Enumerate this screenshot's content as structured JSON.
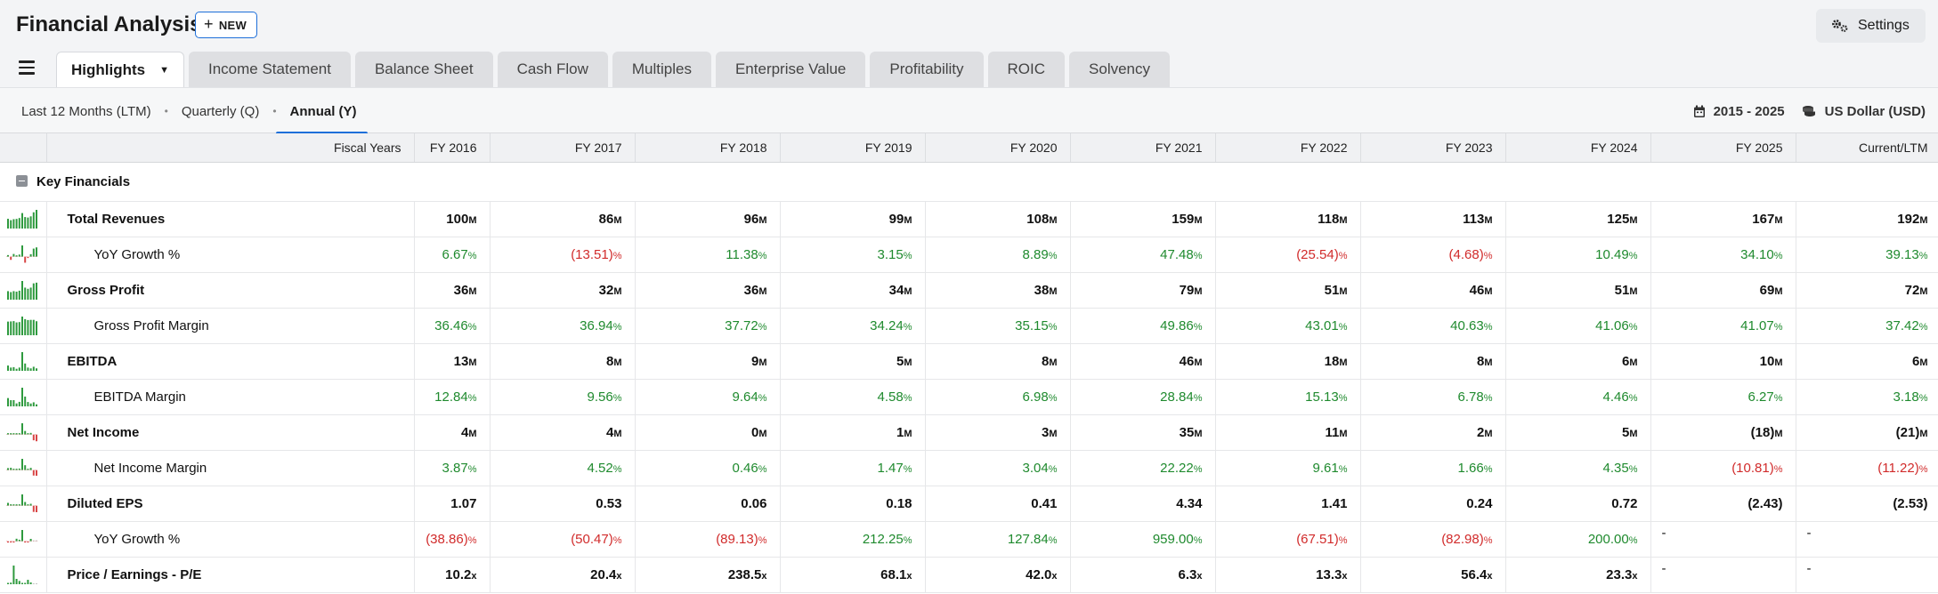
{
  "app": {
    "title": "Financial Analysis",
    "new_label": "NEW",
    "settings_label": "Settings"
  },
  "tabs": [
    {
      "label": "Highlights",
      "active": true
    },
    {
      "label": "Income Statement"
    },
    {
      "label": "Balance Sheet"
    },
    {
      "label": "Cash Flow"
    },
    {
      "label": "Multiples"
    },
    {
      "label": "Enterprise Value"
    },
    {
      "label": "Profitability"
    },
    {
      "label": "ROIC"
    },
    {
      "label": "Solvency"
    }
  ],
  "periods": [
    {
      "label": "Last 12 Months (LTM)"
    },
    {
      "label": "Quarterly (Q)"
    },
    {
      "label": "Annual (Y)",
      "active": true
    }
  ],
  "controls": {
    "date_range": "2015 - 2025",
    "currency": "US Dollar (USD)"
  },
  "table": {
    "header_label": "Fiscal Years",
    "columns": [
      "FY 2016",
      "FY 2017",
      "FY 2018",
      "FY 2019",
      "FY 2020",
      "FY 2021",
      "FY 2022",
      "FY 2023",
      "FY 2024",
      "FY 2025",
      "Current/LTM"
    ],
    "section_title": "Key Financials",
    "rows": [
      {
        "name": "total-revenues",
        "label": "Total Revenues",
        "sub": false,
        "spark": "bar-green",
        "values": [
          [
            "100",
            "M",
            ""
          ],
          [
            "86",
            "M",
            ""
          ],
          [
            "96",
            "M",
            ""
          ],
          [
            "99",
            "M",
            ""
          ],
          [
            "108",
            "M",
            ""
          ],
          [
            "159",
            "M",
            ""
          ],
          [
            "118",
            "M",
            ""
          ],
          [
            "113",
            "M",
            ""
          ],
          [
            "125",
            "M",
            ""
          ],
          [
            "167",
            "M",
            ""
          ],
          [
            "192",
            "M",
            ""
          ]
        ]
      },
      {
        "name": "revenue-yoy-growth",
        "label": "YoY Growth %",
        "sub": true,
        "spark": "bar-mixed",
        "values": [
          [
            "6.67",
            "%",
            "pos"
          ],
          [
            "(13.51)",
            "%",
            "neg"
          ],
          [
            "11.38",
            "%",
            "pos"
          ],
          [
            "3.15",
            "%",
            "pos"
          ],
          [
            "8.89",
            "%",
            "pos"
          ],
          [
            "47.48",
            "%",
            "pos"
          ],
          [
            "(25.54)",
            "%",
            "neg"
          ],
          [
            "(4.68)",
            "%",
            "neg"
          ],
          [
            "10.49",
            "%",
            "pos"
          ],
          [
            "34.10",
            "%",
            "pos"
          ],
          [
            "39.13",
            "%",
            "pos"
          ]
        ]
      },
      {
        "name": "gross-profit",
        "label": "Gross Profit",
        "sub": false,
        "spark": "bar-green",
        "values": [
          [
            "36",
            "M",
            ""
          ],
          [
            "32",
            "M",
            ""
          ],
          [
            "36",
            "M",
            ""
          ],
          [
            "34",
            "M",
            ""
          ],
          [
            "38",
            "M",
            ""
          ],
          [
            "79",
            "M",
            ""
          ],
          [
            "51",
            "M",
            ""
          ],
          [
            "46",
            "M",
            ""
          ],
          [
            "51",
            "M",
            ""
          ],
          [
            "69",
            "M",
            ""
          ],
          [
            "72",
            "M",
            ""
          ]
        ]
      },
      {
        "name": "gross-profit-margin",
        "label": "Gross Profit Margin",
        "sub": true,
        "spark": "bar-green",
        "values": [
          [
            "36.46",
            "%",
            "pos"
          ],
          [
            "36.94",
            "%",
            "pos"
          ],
          [
            "37.72",
            "%",
            "pos"
          ],
          [
            "34.24",
            "%",
            "pos"
          ],
          [
            "35.15",
            "%",
            "pos"
          ],
          [
            "49.86",
            "%",
            "pos"
          ],
          [
            "43.01",
            "%",
            "pos"
          ],
          [
            "40.63",
            "%",
            "pos"
          ],
          [
            "41.06",
            "%",
            "pos"
          ],
          [
            "41.07",
            "%",
            "pos"
          ],
          [
            "37.42",
            "%",
            "pos"
          ]
        ]
      },
      {
        "name": "ebitda",
        "label": "EBITDA",
        "sub": false,
        "spark": "bar-green",
        "values": [
          [
            "13",
            "M",
            ""
          ],
          [
            "8",
            "M",
            ""
          ],
          [
            "9",
            "M",
            ""
          ],
          [
            "5",
            "M",
            ""
          ],
          [
            "8",
            "M",
            ""
          ],
          [
            "46",
            "M",
            ""
          ],
          [
            "18",
            "M",
            ""
          ],
          [
            "8",
            "M",
            ""
          ],
          [
            "6",
            "M",
            ""
          ],
          [
            "10",
            "M",
            ""
          ],
          [
            "6",
            "M",
            ""
          ]
        ]
      },
      {
        "name": "ebitda-margin",
        "label": "EBITDA Margin",
        "sub": true,
        "spark": "bar-green",
        "values": [
          [
            "12.84",
            "%",
            "pos"
          ],
          [
            "9.56",
            "%",
            "pos"
          ],
          [
            "9.64",
            "%",
            "pos"
          ],
          [
            "4.58",
            "%",
            "pos"
          ],
          [
            "6.98",
            "%",
            "pos"
          ],
          [
            "28.84",
            "%",
            "pos"
          ],
          [
            "15.13",
            "%",
            "pos"
          ],
          [
            "6.78",
            "%",
            "pos"
          ],
          [
            "4.46",
            "%",
            "pos"
          ],
          [
            "6.27",
            "%",
            "pos"
          ],
          [
            "3.18",
            "%",
            "pos"
          ]
        ]
      },
      {
        "name": "net-income",
        "label": "Net Income",
        "sub": false,
        "spark": "bar-mixed",
        "values": [
          [
            "4",
            "M",
            ""
          ],
          [
            "4",
            "M",
            ""
          ],
          [
            "0",
            "M",
            ""
          ],
          [
            "1",
            "M",
            ""
          ],
          [
            "3",
            "M",
            ""
          ],
          [
            "35",
            "M",
            ""
          ],
          [
            "11",
            "M",
            ""
          ],
          [
            "2",
            "M",
            ""
          ],
          [
            "5",
            "M",
            ""
          ],
          [
            "(18)",
            "M",
            ""
          ],
          [
            "(21)",
            "M",
            ""
          ]
        ]
      },
      {
        "name": "net-income-margin",
        "label": "Net Income Margin",
        "sub": true,
        "spark": "bar-mixed",
        "values": [
          [
            "3.87",
            "%",
            "pos"
          ],
          [
            "4.52",
            "%",
            "pos"
          ],
          [
            "0.46",
            "%",
            "pos"
          ],
          [
            "1.47",
            "%",
            "pos"
          ],
          [
            "3.04",
            "%",
            "pos"
          ],
          [
            "22.22",
            "%",
            "pos"
          ],
          [
            "9.61",
            "%",
            "pos"
          ],
          [
            "1.66",
            "%",
            "pos"
          ],
          [
            "4.35",
            "%",
            "pos"
          ],
          [
            "(10.81)",
            "%",
            "neg"
          ],
          [
            "(11.22)",
            "%",
            "neg"
          ]
        ]
      },
      {
        "name": "diluted-eps",
        "label": "Diluted EPS",
        "sub": false,
        "spark": "bar-mixed",
        "values": [
          [
            "1.07",
            "",
            ""
          ],
          [
            "0.53",
            "",
            ""
          ],
          [
            "0.06",
            "",
            ""
          ],
          [
            "0.18",
            "",
            ""
          ],
          [
            "0.41",
            "",
            ""
          ],
          [
            "4.34",
            "",
            ""
          ],
          [
            "1.41",
            "",
            ""
          ],
          [
            "0.24",
            "",
            ""
          ],
          [
            "0.72",
            "",
            ""
          ],
          [
            "(2.43)",
            "",
            ""
          ],
          [
            "(2.53)",
            "",
            ""
          ]
        ]
      },
      {
        "name": "eps-yoy-growth",
        "label": "YoY Growth %",
        "sub": true,
        "spark": "bar-mixed",
        "values": [
          [
            "(38.86)",
            "%",
            "neg"
          ],
          [
            "(50.47)",
            "%",
            "neg"
          ],
          [
            "(89.13)",
            "%",
            "neg"
          ],
          [
            "212.25",
            "%",
            "pos"
          ],
          [
            "127.84",
            "%",
            "pos"
          ],
          [
            "959.00",
            "%",
            "pos"
          ],
          [
            "(67.51)",
            "%",
            "neg"
          ],
          [
            "(82.98)",
            "%",
            "neg"
          ],
          [
            "200.00",
            "%",
            "pos"
          ],
          [
            "-",
            "",
            "dash"
          ],
          [
            "-",
            "",
            "dash"
          ]
        ]
      },
      {
        "name": "price-earnings",
        "label": "Price / Earnings - P/E",
        "sub": false,
        "spark": "bar-green",
        "values": [
          [
            "10.2",
            "x",
            ""
          ],
          [
            "20.4",
            "x",
            ""
          ],
          [
            "238.5",
            "x",
            ""
          ],
          [
            "68.1",
            "x",
            ""
          ],
          [
            "42.0",
            "x",
            ""
          ],
          [
            "6.3",
            "x",
            ""
          ],
          [
            "13.3",
            "x",
            ""
          ],
          [
            "56.4",
            "x",
            ""
          ],
          [
            "23.3",
            "x",
            ""
          ],
          [
            "-",
            "",
            "dash"
          ],
          [
            "-",
            "",
            "dash"
          ]
        ]
      }
    ]
  },
  "colors": {
    "accent": "#1e6fd9",
    "positive": "#1f8a2e",
    "negative": "#d12b2b"
  }
}
